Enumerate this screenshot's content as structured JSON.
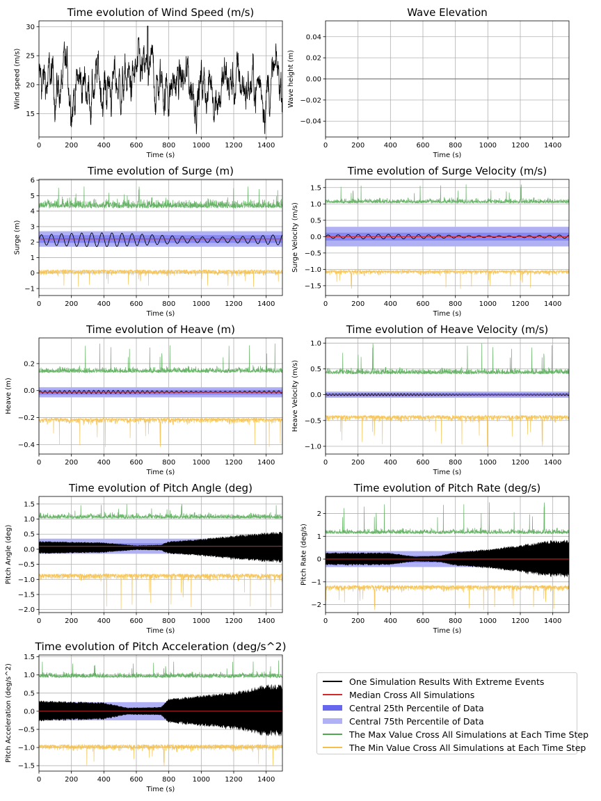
{
  "chart_data": [
    {
      "id": "wind",
      "type": "line",
      "title": "Time evolution of Wind Speed (m/s)",
      "xlabel": "Time (s)",
      "ylabel": "Wind speed (m/s)",
      "xlim": [
        0,
        1500
      ],
      "ylim": [
        11,
        31
      ],
      "xticks": [
        0,
        200,
        400,
        600,
        800,
        1000,
        1200,
        1400
      ],
      "yticks": [
        15,
        20,
        25,
        30
      ],
      "xtick_labels": [
        "0",
        "200",
        "400",
        "600",
        "800",
        "1000",
        "1200",
        "1400"
      ],
      "ytick_labels": [
        "15",
        "20",
        "25",
        "30"
      ],
      "grid": true,
      "series": [
        {
          "name": "Wind speed",
          "color": "#000000",
          "mean": 20,
          "std": 2.6,
          "min": 11.5,
          "max": 30.1
        }
      ]
    },
    {
      "id": "wave",
      "type": "line",
      "title": "Wave Elevation",
      "xlabel": "Time (s)",
      "ylabel": "Wave height (m)",
      "xlim": [
        0,
        1500
      ],
      "ylim": [
        -0.055,
        0.055
      ],
      "xticks": [
        0,
        200,
        400,
        600,
        800,
        1000,
        1200,
        1400
      ],
      "yticks": [
        -0.04,
        -0.02,
        0.0,
        0.02,
        0.04
      ],
      "xtick_labels": [
        "0",
        "200",
        "400",
        "600",
        "800",
        "1000",
        "1200",
        "1400"
      ],
      "ytick_labels": [
        "−0.04",
        "−0.02",
        "0.00",
        "0.02",
        "0.04"
      ],
      "grid": true,
      "series": [
        {
          "name": "Wave height",
          "color": "#7f7f7f",
          "value": 0.0
        }
      ]
    },
    {
      "id": "surge",
      "type": "area",
      "title": "Time evolution of Surge (m)",
      "xlabel": "Time (s)",
      "ylabel": "Surge (m)",
      "xlim": [
        0,
        1500
      ],
      "ylim": [
        -1.45,
        6.05
      ],
      "xticks": [
        0,
        200,
        400,
        600,
        800,
        1000,
        1200,
        1400
      ],
      "yticks": [
        -1,
        0,
        1,
        2,
        3,
        4,
        5,
        6
      ],
      "xtick_labels": [
        "0",
        "200",
        "400",
        "600",
        "800",
        "1000",
        "1200",
        "1400"
      ],
      "ytick_labels": [
        "−1",
        "0",
        "1",
        "2",
        "3",
        "4",
        "5",
        "6"
      ],
      "grid": true,
      "median": 2.2,
      "p25": [
        1.95,
        2.45
      ],
      "p75": [
        1.7,
        2.7
      ],
      "max": {
        "base": 4.3,
        "spread": 0.4,
        "peak": 5.6
      },
      "min": {
        "base": 0.15,
        "spread": 0.25,
        "trough": -0.9
      },
      "sim": {
        "type": "sine",
        "center": 2.15,
        "amp": 0.45,
        "period": 62
      }
    },
    {
      "id": "surgevel",
      "type": "area",
      "title": "Time evolution of Surge Velocity (m/s)",
      "xlabel": "Time (s)",
      "ylabel": "Surge Velocity (m/s)",
      "xlim": [
        0,
        1500
      ],
      "ylim": [
        -1.8,
        1.75
      ],
      "xticks": [
        0,
        200,
        400,
        600,
        800,
        1000,
        1200,
        1400
      ],
      "yticks": [
        -1.5,
        -1.0,
        -0.5,
        0.0,
        0.5,
        1.0,
        1.5
      ],
      "xtick_labels": [
        "0",
        "200",
        "400",
        "600",
        "800",
        "1000",
        "1200",
        "1400"
      ],
      "ytick_labels": [
        "−1.5",
        "−1.0",
        "−0.5",
        "0.0",
        "0.5",
        "1.0",
        "1.5"
      ],
      "grid": true,
      "median": 0.0,
      "p25": [
        -0.12,
        0.12
      ],
      "p75": [
        -0.3,
        0.3
      ],
      "max": {
        "base": 1.05,
        "spread": 0.1,
        "peak": 1.6
      },
      "min": {
        "base": -1.05,
        "spread": 0.1,
        "trough": -1.6
      },
      "sim": {
        "type": "sine",
        "center": 0.0,
        "amp": 0.07,
        "period": 62
      }
    },
    {
      "id": "heave",
      "type": "area",
      "title": "Time evolution of Heave (m)",
      "xlabel": "Time (s)",
      "ylabel": "Heave (m)",
      "xlim": [
        0,
        1500
      ],
      "ylim": [
        -0.47,
        0.39
      ],
      "xticks": [
        0,
        200,
        400,
        600,
        800,
        1000,
        1200,
        1400
      ],
      "yticks": [
        -0.4,
        -0.2,
        0.0,
        0.2
      ],
      "xtick_labels": [
        "0",
        "200",
        "400",
        "600",
        "800",
        "1000",
        "1200",
        "1400"
      ],
      "ytick_labels": [
        "−0.4",
        "−0.2",
        "0.0",
        "0.2"
      ],
      "grid": true,
      "median": -0.012,
      "p25": [
        -0.03,
        0.005
      ],
      "p75": [
        -0.05,
        0.025
      ],
      "max": {
        "base": 0.14,
        "spread": 0.03,
        "peak": 0.35
      },
      "min": {
        "base": -0.21,
        "spread": 0.03,
        "trough": -0.42
      },
      "sim": {
        "type": "sine",
        "center": -0.01,
        "amp": 0.012,
        "period": 30
      }
    },
    {
      "id": "heavevel",
      "type": "area",
      "title": "Time evolution of Heave Velocity (m/s)",
      "xlabel": "Time (s)",
      "ylabel": "Heave Velocity (m/s)",
      "xlim": [
        0,
        1500
      ],
      "ylim": [
        -1.15,
        1.1
      ],
      "xticks": [
        0,
        200,
        400,
        600,
        800,
        1000,
        1200,
        1400
      ],
      "yticks": [
        -1.0,
        -0.5,
        0.0,
        0.5,
        1.0
      ],
      "xtick_labels": [
        "0",
        "200",
        "400",
        "600",
        "800",
        "1000",
        "1200",
        "1400"
      ],
      "ytick_labels": [
        "−1.0",
        "−0.5",
        "0.0",
        "0.5",
        "1.0"
      ],
      "grid": true,
      "median": 0.0,
      "p25": [
        -0.03,
        0.03
      ],
      "p75": [
        -0.06,
        0.06
      ],
      "max": {
        "base": 0.42,
        "spread": 0.08,
        "peak": 1.0
      },
      "min": {
        "base": -0.42,
        "spread": 0.08,
        "trough": -1.0
      },
      "sim": {
        "type": "sine",
        "center": 0.0,
        "amp": 0.02,
        "period": 20
      }
    },
    {
      "id": "pitch",
      "type": "area",
      "title": "Time evolution of Pitch Angle (deg)",
      "xlabel": "Time (s)",
      "ylabel": "Pitch Angle (deg)",
      "xlim": [
        0,
        1500
      ],
      "ylim": [
        -2.1,
        1.75
      ],
      "xticks": [
        0,
        200,
        400,
        600,
        800,
        1000,
        1200,
        1400
      ],
      "yticks": [
        -2.0,
        -1.5,
        -1.0,
        -0.5,
        0.0,
        0.5,
        1.0,
        1.5
      ],
      "xtick_labels": [
        "0",
        "200",
        "400",
        "600",
        "800",
        "1000",
        "1200",
        "1400"
      ],
      "ytick_labels": [
        "−2.0",
        "−1.5",
        "−1.0",
        "−0.5",
        "0.0",
        "0.5",
        "1.0",
        "1.5"
      ],
      "grid": true,
      "median": 0.1,
      "p25": [
        0.0,
        0.2
      ],
      "p75": [
        -0.15,
        0.35
      ],
      "max": {
        "base": 1.05,
        "spread": 0.12,
        "peak": 1.5
      },
      "min": {
        "base": -0.85,
        "spread": 0.15,
        "trough": -2.0
      },
      "sim": {
        "type": "band",
        "center": 0.05,
        "env": [
          [
            0,
            0.22
          ],
          [
            400,
            0.18
          ],
          [
            600,
            0.08
          ],
          [
            750,
            0.1
          ],
          [
            800,
            0.22
          ],
          [
            1000,
            0.3
          ],
          [
            1200,
            0.42
          ],
          [
            1400,
            0.52
          ],
          [
            1500,
            0.55
          ]
        ]
      }
    },
    {
      "id": "pitchrate",
      "type": "area",
      "title": "Time evolution of Pitch Rate (deg/s)",
      "xlabel": "Time (s)",
      "ylabel": "Pitch Rate (deg/s)",
      "xlim": [
        0,
        1500
      ],
      "ylim": [
        -2.35,
        2.75
      ],
      "xticks": [
        0,
        200,
        400,
        600,
        800,
        1000,
        1200,
        1400
      ],
      "yticks": [
        -2,
        -1,
        0,
        1,
        2
      ],
      "xtick_labels": [
        "0",
        "200",
        "400",
        "600",
        "800",
        "1000",
        "1200",
        "1400"
      ],
      "ytick_labels": [
        "−2",
        "−1",
        "0",
        "1",
        "2"
      ],
      "grid": true,
      "median": 0.0,
      "p25": [
        -0.15,
        0.15
      ],
      "p75": [
        -0.35,
        0.35
      ],
      "max": {
        "base": 1.15,
        "spread": 0.15,
        "peak": 2.5
      },
      "min": {
        "base": -1.2,
        "spread": 0.18,
        "trough": -2.25
      },
      "sim": {
        "type": "band",
        "center": 0.0,
        "env": [
          [
            0,
            0.3
          ],
          [
            400,
            0.28
          ],
          [
            550,
            0.12
          ],
          [
            700,
            0.15
          ],
          [
            780,
            0.3
          ],
          [
            1000,
            0.45
          ],
          [
            1200,
            0.65
          ],
          [
            1400,
            0.85
          ],
          [
            1500,
            0.85
          ]
        ]
      }
    },
    {
      "id": "pitchacc",
      "type": "area",
      "title": "Time evolution of Pitch Acceleration (deg/s^2)",
      "xlabel": "Time (s)",
      "ylabel": "Pitch Acceleration (deg/s^2)",
      "xlim": [
        0,
        1500
      ],
      "ylim": [
        -1.65,
        1.55
      ],
      "xticks": [
        0,
        200,
        400,
        600,
        800,
        1000,
        1200,
        1400
      ],
      "yticks": [
        -1.5,
        -1.0,
        -0.5,
        0.0,
        0.5,
        1.0,
        1.5
      ],
      "xtick_labels": [
        "0",
        "200",
        "400",
        "600",
        "800",
        "1000",
        "1200",
        "1400"
      ],
      "ytick_labels": [
        "−1.5",
        "−1.0",
        "−0.5",
        "0.0",
        "0.5",
        "1.0",
        "1.5"
      ],
      "grid": true,
      "median": 0.0,
      "p25": [
        -0.1,
        0.1
      ],
      "p75": [
        -0.25,
        0.25
      ],
      "max": {
        "base": 0.95,
        "spread": 0.1,
        "peak": 1.4
      },
      "min": {
        "base": -0.95,
        "spread": 0.12,
        "trough": -1.5
      },
      "sim": {
        "type": "band",
        "center": 0.0,
        "env": [
          [
            0,
            0.3
          ],
          [
            400,
            0.25
          ],
          [
            550,
            0.1
          ],
          [
            750,
            0.12
          ],
          [
            800,
            0.35
          ],
          [
            1000,
            0.45
          ],
          [
            1200,
            0.55
          ],
          [
            1400,
            0.75
          ],
          [
            1500,
            0.75
          ]
        ]
      }
    }
  ],
  "legend": {
    "items": [
      {
        "label": "One Simulation Results With Extreme Events",
        "color": "#000000",
        "style": "line"
      },
      {
        "label": "Median Cross All Simulations",
        "color": "#d62728",
        "style": "line"
      },
      {
        "label": "Central 25th Percentile of Data",
        "color": "#6666ee",
        "style": "thick"
      },
      {
        "label": "Central 75th Percentile of Data",
        "color": "#b0b0f5",
        "style": "thick"
      },
      {
        "label": "The Max Value Cross All Simulations at Each Time Step",
        "color": "#4ea64e",
        "style": "line"
      },
      {
        "label": "The Min Value Cross All Simulations at Each Time Step",
        "color": "#f5c04a",
        "style": "line"
      }
    ]
  },
  "colors": {
    "sim": "#000000",
    "median": "#d62728",
    "p25": "#6666ee",
    "p75": "#b0b0f5",
    "max": "#4ea64e",
    "min": "#f5c04a",
    "grid": "#b0b0b0"
  }
}
